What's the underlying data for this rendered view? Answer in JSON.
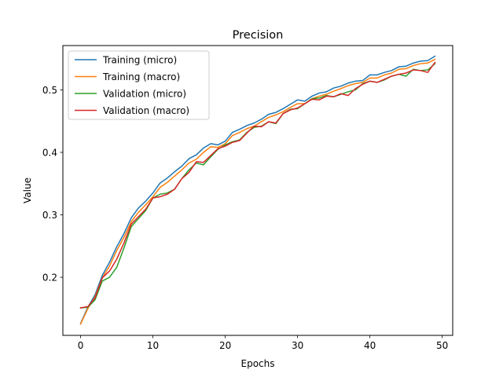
{
  "chart_data": {
    "type": "line",
    "title": "Precision",
    "xlabel": "Epochs",
    "ylabel": "Value",
    "xlim": [
      -2.45,
      51.45
    ],
    "ylim": [
      0.107,
      0.571
    ],
    "xticks": [
      0,
      10,
      20,
      30,
      40,
      50
    ],
    "yticks": [
      0.2,
      0.3,
      0.4,
      0.5
    ],
    "ytick_labels": [
      "0.2",
      "0.3",
      "0.4",
      "0.5"
    ],
    "grid": false,
    "legend_position": "upper left",
    "x": [
      0,
      1,
      2,
      3,
      4,
      5,
      6,
      7,
      8,
      9,
      10,
      11,
      12,
      13,
      14,
      15,
      16,
      17,
      18,
      19,
      20,
      21,
      22,
      23,
      24,
      25,
      26,
      27,
      28,
      29,
      30,
      31,
      32,
      33,
      34,
      35,
      36,
      37,
      38,
      39,
      40,
      41,
      42,
      43,
      44,
      45,
      46,
      47,
      48,
      49
    ],
    "series": [
      {
        "name": "Training (micro)",
        "color": "#1f77b4",
        "values": [
          0.126,
          0.152,
          0.172,
          0.203,
          0.224,
          0.249,
          0.27,
          0.295,
          0.311,
          0.322,
          0.335,
          0.351,
          0.359,
          0.369,
          0.378,
          0.39,
          0.396,
          0.407,
          0.414,
          0.412,
          0.418,
          0.432,
          0.437,
          0.443,
          0.447,
          0.453,
          0.461,
          0.464,
          0.47,
          0.477,
          0.484,
          0.482,
          0.49,
          0.495,
          0.497,
          0.503,
          0.506,
          0.511,
          0.514,
          0.515,
          0.524,
          0.524,
          0.528,
          0.531,
          0.537,
          0.538,
          0.543,
          0.546,
          0.547,
          0.554
        ]
      },
      {
        "name": "Training (macro)",
        "color": "#ff7f0e",
        "values": [
          0.125,
          0.15,
          0.169,
          0.199,
          0.218,
          0.243,
          0.264,
          0.289,
          0.304,
          0.316,
          0.329,
          0.344,
          0.352,
          0.362,
          0.372,
          0.383,
          0.389,
          0.4,
          0.409,
          0.408,
          0.414,
          0.427,
          0.432,
          0.438,
          0.442,
          0.449,
          0.456,
          0.46,
          0.465,
          0.472,
          0.478,
          0.478,
          0.486,
          0.49,
          0.493,
          0.498,
          0.502,
          0.507,
          0.51,
          0.512,
          0.519,
          0.519,
          0.524,
          0.527,
          0.533,
          0.534,
          0.539,
          0.542,
          0.543,
          0.549
        ]
      },
      {
        "name": "Validation (micro)",
        "color": "#2ca02c",
        "values": [
          0.151,
          0.152,
          0.164,
          0.194,
          0.2,
          0.216,
          0.247,
          0.281,
          0.294,
          0.307,
          0.327,
          0.333,
          0.335,
          0.341,
          0.358,
          0.372,
          0.383,
          0.38,
          0.393,
          0.405,
          0.412,
          0.417,
          0.42,
          0.432,
          0.44,
          0.442,
          0.449,
          0.446,
          0.462,
          0.469,
          0.47,
          0.478,
          0.486,
          0.487,
          0.491,
          0.489,
          0.493,
          0.497,
          0.5,
          0.51,
          0.514,
          0.512,
          0.516,
          0.522,
          0.525,
          0.522,
          0.533,
          0.531,
          0.532,
          0.542
        ]
      },
      {
        "name": "Validation (macro)",
        "color": "#d62728",
        "values": [
          0.151,
          0.153,
          0.167,
          0.199,
          0.21,
          0.229,
          0.255,
          0.285,
          0.297,
          0.309,
          0.327,
          0.329,
          0.333,
          0.341,
          0.358,
          0.368,
          0.385,
          0.384,
          0.395,
          0.406,
          0.41,
          0.416,
          0.419,
          0.431,
          0.442,
          0.441,
          0.449,
          0.447,
          0.462,
          0.468,
          0.471,
          0.478,
          0.485,
          0.484,
          0.49,
          0.489,
          0.494,
          0.491,
          0.502,
          0.509,
          0.514,
          0.512,
          0.517,
          0.522,
          0.525,
          0.527,
          0.532,
          0.531,
          0.528,
          0.544
        ]
      }
    ]
  }
}
